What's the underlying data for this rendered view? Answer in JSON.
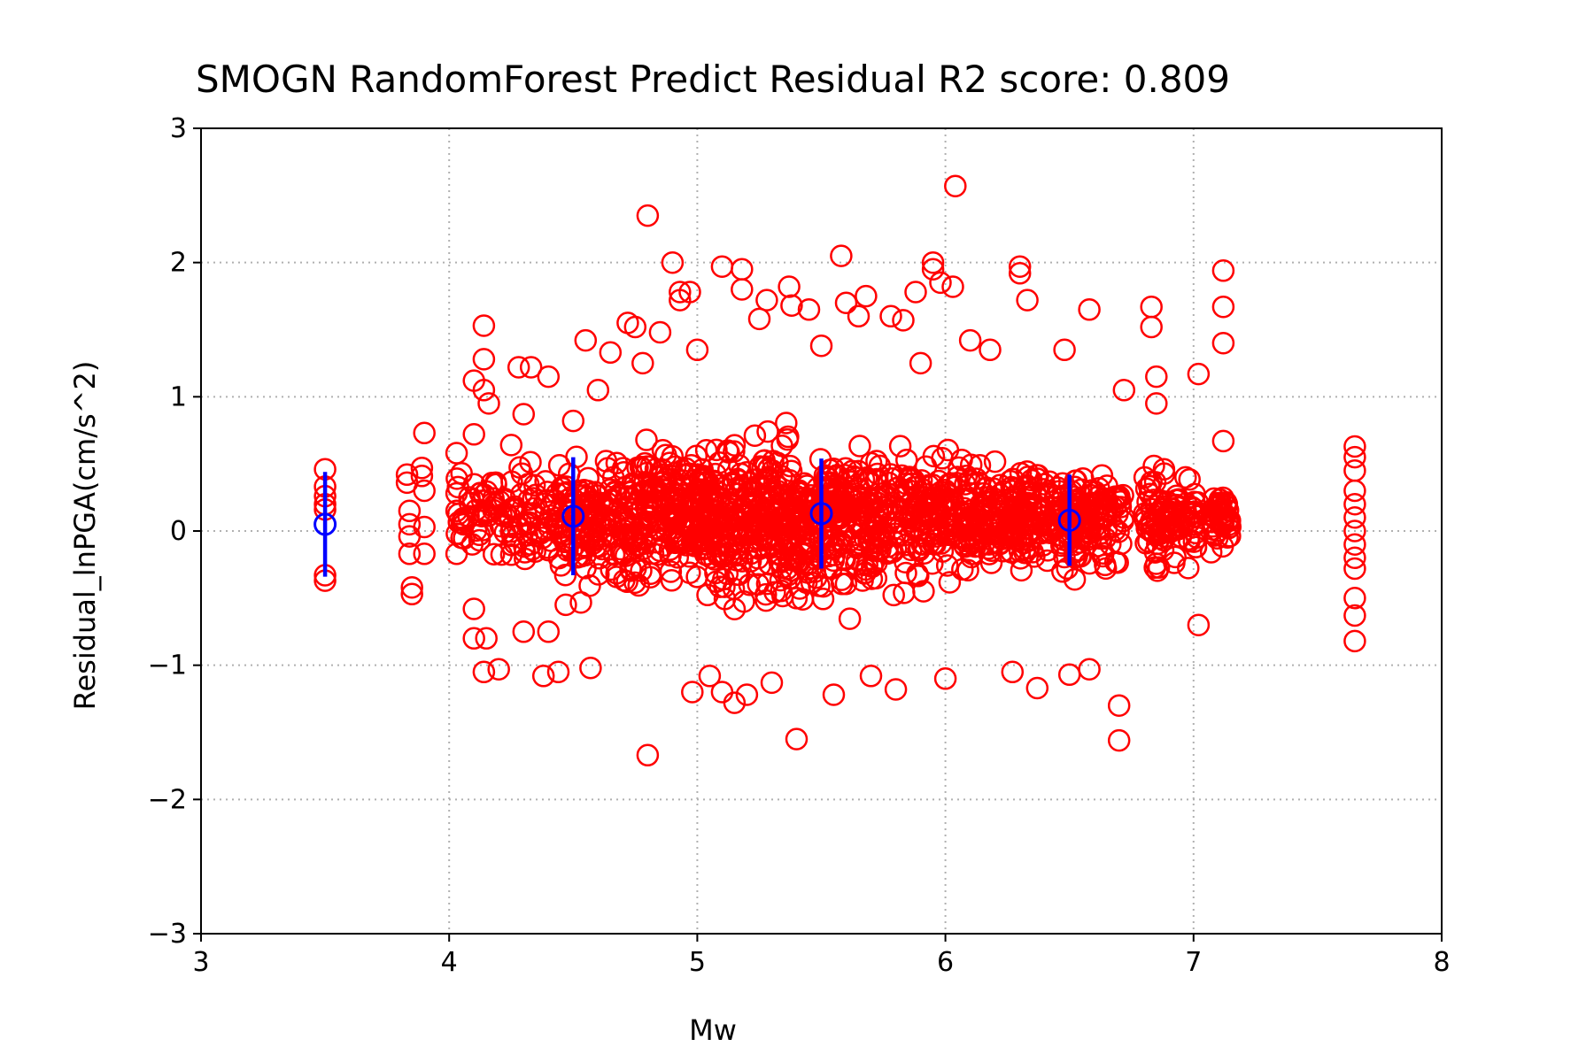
{
  "chart_data": {
    "type": "scatter",
    "title": "SMOGN RandomForest Predict Residual R2 score: 0.809",
    "xlabel": "Mw",
    "ylabel": "Residual_lnPGA(cm/s^2)",
    "xlim": [
      3,
      8
    ],
    "ylim": [
      -3,
      3
    ],
    "xticks": [
      3,
      4,
      5,
      6,
      7,
      8
    ],
    "xtick_labels": [
      "3",
      "4",
      "5",
      "6",
      "7",
      "8"
    ],
    "yticks": [
      -3,
      -2,
      -1,
      0,
      1,
      2,
      3
    ],
    "ytick_labels": [
      "−3",
      "−2",
      "−1",
      "0",
      "1",
      "2",
      "3"
    ],
    "grid": true,
    "colors": {
      "residuals": "#ff0000",
      "binned": "#0000ff"
    },
    "series": [
      {
        "marker": "open-circle",
        "color": "#ff0000",
        "points": [
          [
            3.5,
            0.46
          ],
          [
            3.5,
            0.33
          ],
          [
            3.5,
            0.26
          ],
          [
            3.5,
            0.2
          ],
          [
            3.5,
            0.16
          ],
          [
            3.5,
            -0.33
          ],
          [
            3.5,
            -0.37
          ],
          [
            3.83,
            0.42
          ],
          [
            3.83,
            0.36
          ],
          [
            3.84,
            0.15
          ],
          [
            3.84,
            0.05
          ],
          [
            3.84,
            -0.04
          ],
          [
            3.84,
            -0.17
          ],
          [
            3.85,
            -0.42
          ],
          [
            3.85,
            -0.47
          ],
          [
            3.89,
            0.47
          ],
          [
            3.89,
            0.41
          ],
          [
            3.9,
            0.73
          ],
          [
            3.9,
            0.3
          ],
          [
            3.9,
            0.03
          ],
          [
            3.9,
            -0.17
          ],
          [
            4.03,
            0.58
          ],
          [
            4.03,
            0.28
          ],
          [
            4.03,
            0.15
          ],
          [
            4.03,
            -0.17
          ],
          [
            4.05,
            -0.05
          ],
          [
            4.05,
            0.43
          ],
          [
            4.1,
            1.12
          ],
          [
            4.1,
            0.72
          ],
          [
            4.1,
            -0.58
          ],
          [
            4.1,
            -0.8
          ],
          [
            4.14,
            1.53
          ],
          [
            4.14,
            1.28
          ],
          [
            4.14,
            1.05
          ],
          [
            4.14,
            -1.05
          ],
          [
            4.15,
            -0.8
          ],
          [
            4.16,
            0.95
          ],
          [
            4.2,
            -1.03
          ],
          [
            4.25,
            0.64
          ],
          [
            4.28,
            1.22
          ],
          [
            4.3,
            0.87
          ],
          [
            4.3,
            -0.75
          ],
          [
            4.33,
            1.22
          ],
          [
            4.38,
            -1.08
          ],
          [
            4.4,
            1.15
          ],
          [
            4.4,
            -0.75
          ],
          [
            4.44,
            -1.05
          ],
          [
            4.47,
            -0.55
          ],
          [
            4.5,
            0.82
          ],
          [
            4.55,
            1.42
          ],
          [
            4.57,
            -1.02
          ],
          [
            4.6,
            1.05
          ],
          [
            4.65,
            1.33
          ],
          [
            4.72,
            1.55
          ],
          [
            4.75,
            1.52
          ],
          [
            4.78,
            1.25
          ],
          [
            4.8,
            2.35
          ],
          [
            4.8,
            -1.67
          ],
          [
            4.85,
            1.48
          ],
          [
            4.9,
            2.0
          ],
          [
            4.93,
            1.78
          ],
          [
            4.93,
            1.72
          ],
          [
            4.97,
            1.78
          ],
          [
            4.98,
            -1.2
          ],
          [
            5.0,
            1.35
          ],
          [
            5.05,
            -1.08
          ],
          [
            5.1,
            1.97
          ],
          [
            5.1,
            -1.2
          ],
          [
            5.15,
            -1.28
          ],
          [
            5.18,
            1.95
          ],
          [
            5.18,
            1.8
          ],
          [
            5.2,
            -1.22
          ],
          [
            5.25,
            1.58
          ],
          [
            5.28,
            1.72
          ],
          [
            5.3,
            -1.13
          ],
          [
            5.37,
            1.82
          ],
          [
            5.38,
            1.68
          ],
          [
            5.4,
            -1.55
          ],
          [
            5.45,
            1.65
          ],
          [
            5.5,
            1.38
          ],
          [
            5.55,
            -1.22
          ],
          [
            5.58,
            2.05
          ],
          [
            5.6,
            1.7
          ],
          [
            5.65,
            1.6
          ],
          [
            5.68,
            1.75
          ],
          [
            5.7,
            -1.08
          ],
          [
            5.78,
            1.6
          ],
          [
            5.8,
            -1.18
          ],
          [
            5.83,
            1.57
          ],
          [
            5.88,
            1.78
          ],
          [
            5.9,
            1.25
          ],
          [
            5.95,
            2.0
          ],
          [
            5.95,
            1.95
          ],
          [
            5.98,
            1.85
          ],
          [
            6.0,
            -1.1
          ],
          [
            6.03,
            1.82
          ],
          [
            6.04,
            2.57
          ],
          [
            6.1,
            1.42
          ],
          [
            6.18,
            1.35
          ],
          [
            6.27,
            -1.05
          ],
          [
            6.3,
            1.97
          ],
          [
            6.3,
            1.92
          ],
          [
            6.33,
            1.72
          ],
          [
            6.37,
            -1.17
          ],
          [
            6.48,
            1.35
          ],
          [
            6.5,
            -1.07
          ],
          [
            6.58,
            1.65
          ],
          [
            6.58,
            -1.03
          ],
          [
            6.7,
            -1.3
          ],
          [
            6.7,
            -1.56
          ],
          [
            6.72,
            1.05
          ],
          [
            6.83,
            1.67
          ],
          [
            6.83,
            1.52
          ],
          [
            6.85,
            1.15
          ],
          [
            6.85,
            0.95
          ],
          [
            7.02,
            1.17
          ],
          [
            7.02,
            -0.7
          ],
          [
            7.12,
            1.94
          ],
          [
            7.12,
            1.67
          ],
          [
            7.12,
            1.4
          ],
          [
            7.12,
            0.67
          ],
          [
            7.65,
            0.63
          ],
          [
            7.65,
            0.55
          ],
          [
            7.65,
            0.45
          ],
          [
            7.65,
            0.3
          ],
          [
            7.65,
            0.2
          ],
          [
            7.65,
            0.1
          ],
          [
            7.65,
            0.0
          ],
          [
            7.65,
            -0.1
          ],
          [
            7.65,
            -0.2
          ],
          [
            7.65,
            -0.28
          ],
          [
            7.65,
            -0.5
          ],
          [
            7.65,
            -0.63
          ],
          [
            7.65,
            -0.82
          ]
        ]
      },
      {
        "marker": "open-circle-errorbar",
        "color": "#0000ff",
        "x": [
          3.5,
          4.5,
          5.5,
          6.5
        ],
        "y": [
          0.05,
          0.11,
          0.13,
          0.08
        ],
        "yerr": [
          0.39,
          0.44,
          0.41,
          0.34
        ]
      }
    ]
  }
}
